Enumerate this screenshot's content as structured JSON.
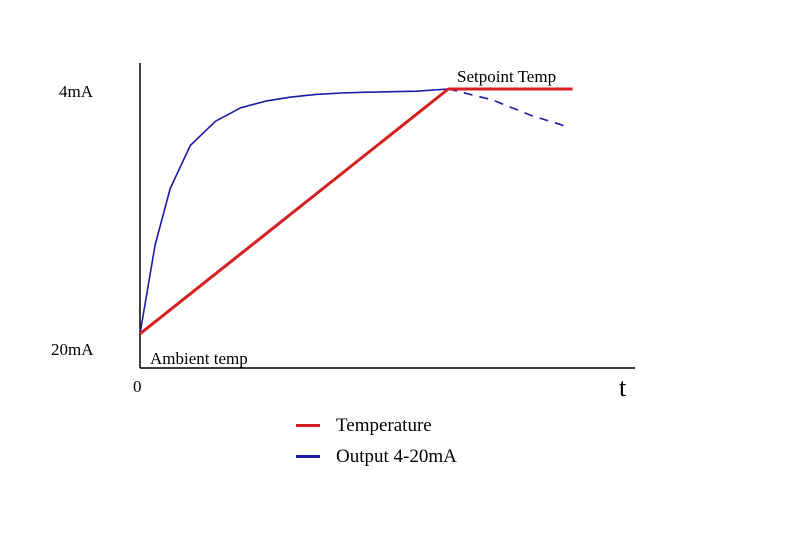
{
  "chart_data": {
    "type": "line",
    "title": "",
    "xlabel": "t",
    "ylabel": "",
    "x_tick_labels": [
      "0"
    ],
    "y_tick_labels": {
      "top": "4mA",
      "bottom": "20mA"
    },
    "xlim": [
      0,
      10
    ],
    "ylim": [
      0,
      10
    ],
    "grid": false,
    "legend_position": "below",
    "annotations": {
      "setpoint": "Setpoint Temp",
      "ambient": "Ambient temp"
    },
    "series": [
      {
        "name": "Temperature",
        "color": "#d42020",
        "x": [
          0,
          6.13,
          8.6
        ],
        "y": [
          0.9,
          10,
          10
        ]
      },
      {
        "name": "Output 4-20mA",
        "color": "#1c1ca8",
        "x": [
          0,
          0.3,
          0.6,
          1.0,
          1.5,
          2.0,
          2.5,
          3.0,
          3.5,
          4.0,
          4.5,
          5.0,
          5.5,
          6.13
        ],
        "y": [
          0.9,
          4.2,
          6.3,
          7.9,
          8.8,
          9.3,
          9.55,
          9.7,
          9.8,
          9.85,
          9.88,
          9.9,
          9.92,
          10
        ],
        "extension": {
          "x": [
            6.13,
            7.0,
            7.8,
            8.5
          ],
          "y": [
            10,
            9.6,
            9.0,
            8.6
          ],
          "style": "dashed"
        }
      }
    ]
  }
}
